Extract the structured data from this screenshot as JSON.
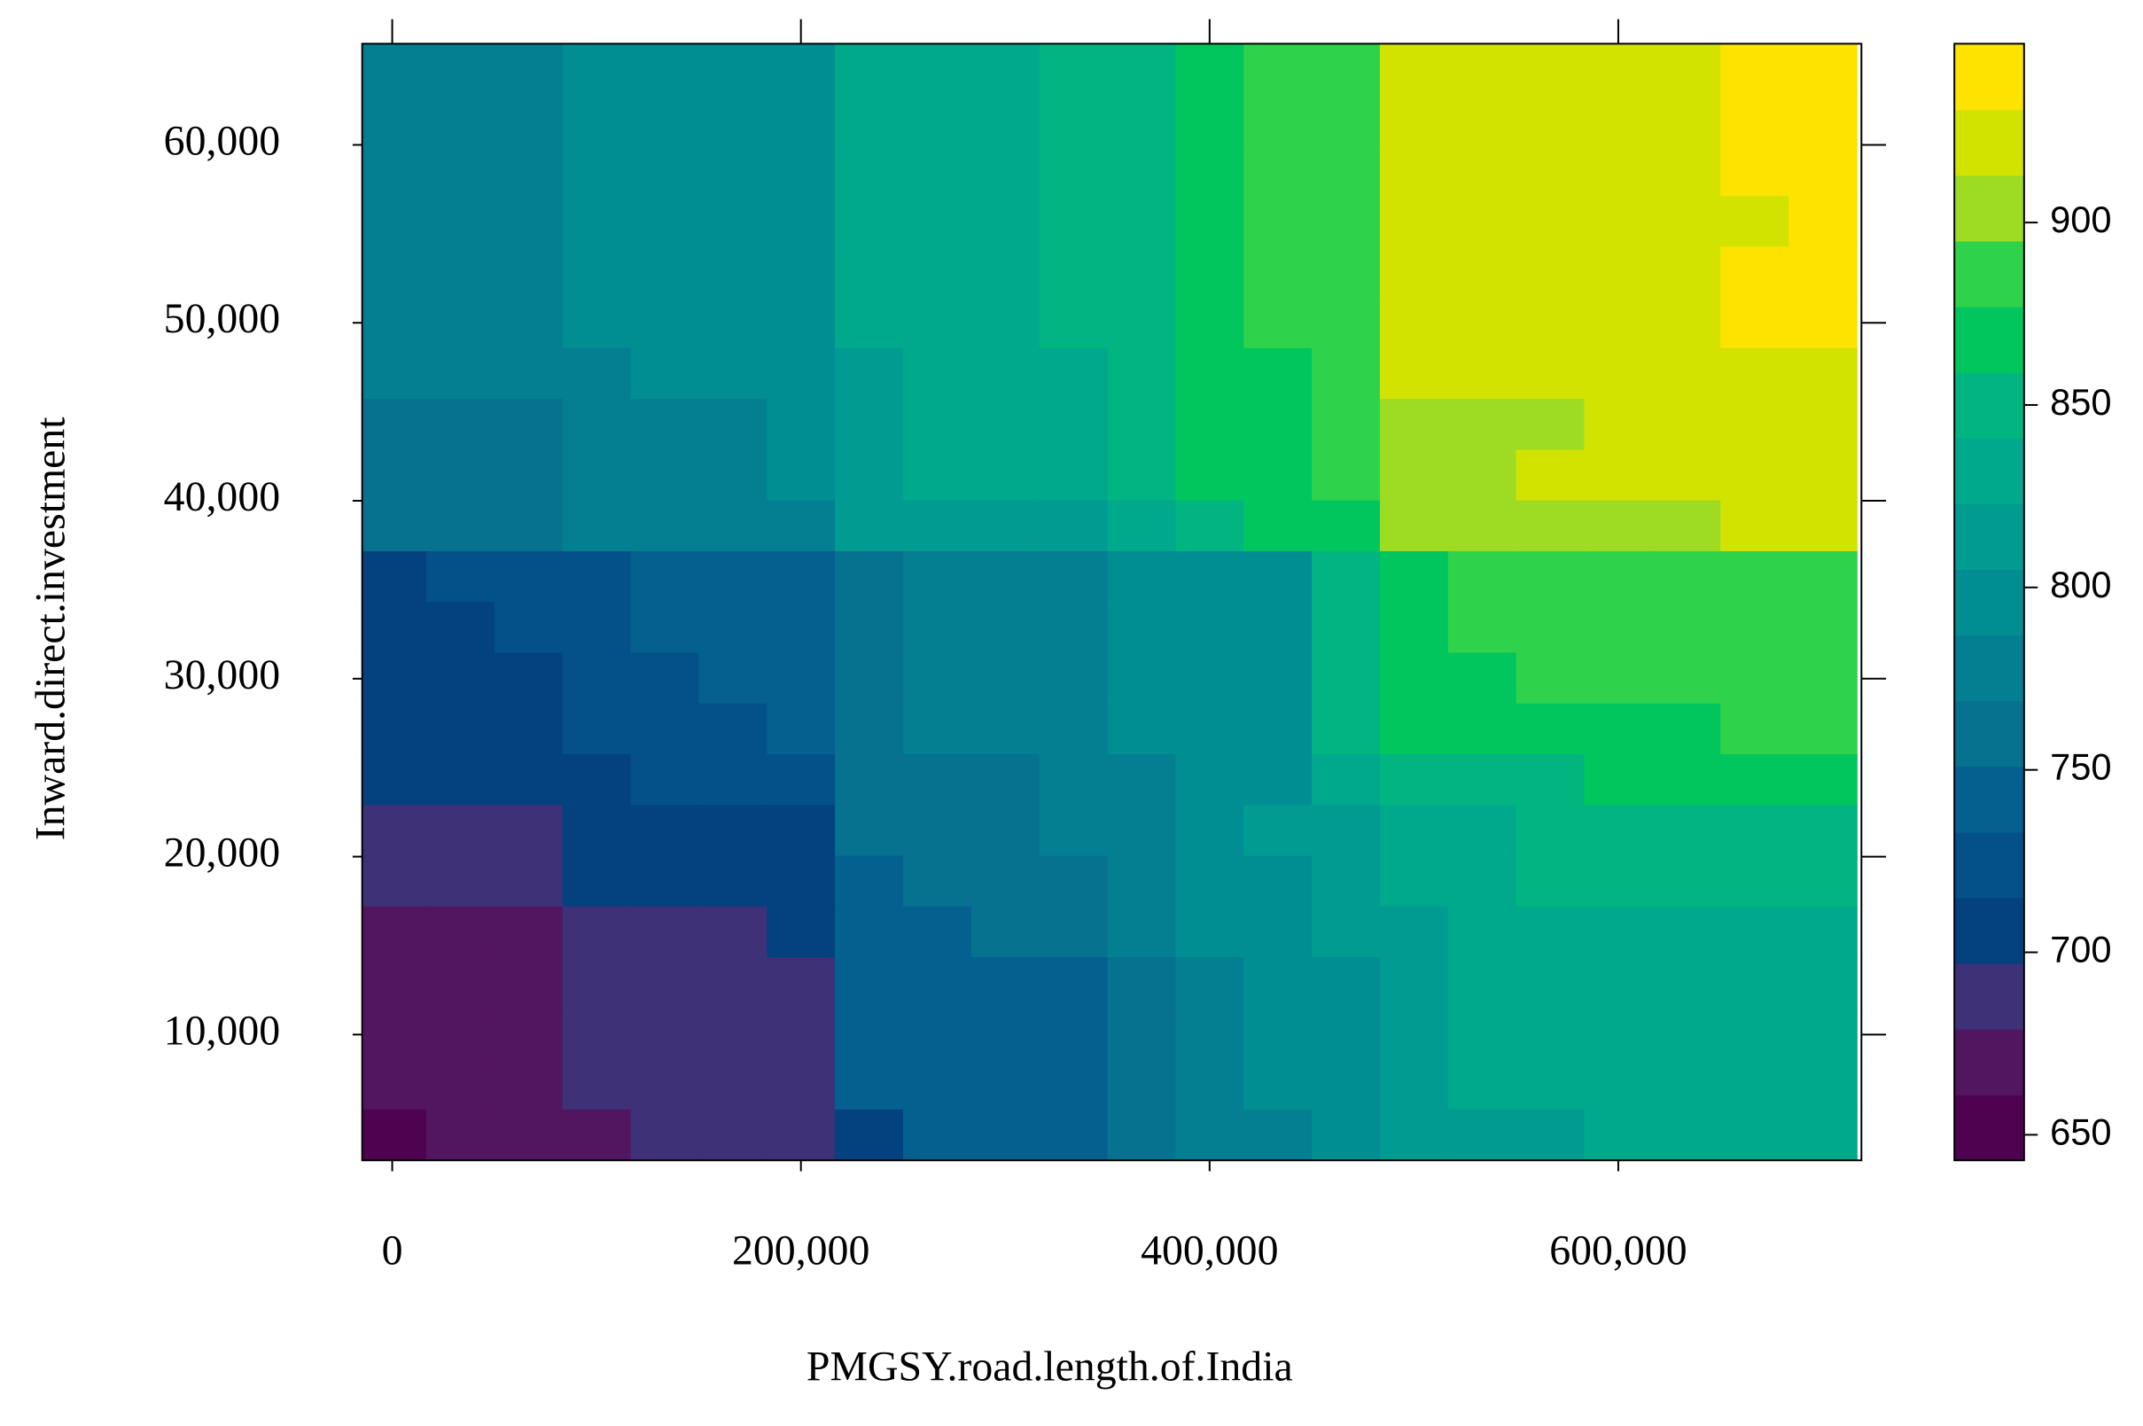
{
  "chart_data": {
    "type": "heatmap",
    "xlabel": "PMGSY.road.length.of.India",
    "ylabel": "Inward.direct.investment",
    "x": [
      0,
      33333,
      66667,
      100000,
      133333,
      166667,
      200000,
      233333,
      266667,
      300000,
      333333,
      366667,
      400000,
      433333,
      466667,
      500000,
      533333,
      566667,
      600000,
      633333,
      666667,
      700000
    ],
    "y": [
      64258,
      61406,
      58554,
      55702,
      52850,
      49998,
      47146,
      44294,
      41442,
      38590,
      35738,
      32886,
      30034,
      27182,
      24330,
      21478,
      18626,
      15774,
      12922,
      10070,
      7218,
      4366
    ],
    "z": [
      [
        778,
        778,
        778,
        796,
        796,
        796,
        796,
        832,
        832,
        832,
        850,
        850,
        868,
        886,
        886,
        922,
        922,
        922,
        922,
        922,
        940,
        940
      ],
      [
        778,
        778,
        778,
        796,
        796,
        796,
        796,
        832,
        832,
        832,
        850,
        850,
        868,
        886,
        886,
        922,
        922,
        922,
        922,
        922,
        940,
        940
      ],
      [
        778,
        778,
        778,
        796,
        796,
        796,
        796,
        832,
        832,
        832,
        850,
        850,
        868,
        886,
        886,
        922,
        922,
        922,
        922,
        922,
        940,
        940
      ],
      [
        778,
        778,
        778,
        796,
        796,
        796,
        796,
        832,
        832,
        832,
        850,
        850,
        868,
        886,
        886,
        922,
        922,
        922,
        922,
        922,
        922,
        940
      ],
      [
        778,
        778,
        778,
        796,
        796,
        796,
        796,
        832,
        832,
        832,
        850,
        850,
        868,
        886,
        886,
        922,
        922,
        922,
        922,
        922,
        940,
        940
      ],
      [
        778,
        778,
        778,
        796,
        796,
        796,
        796,
        832,
        832,
        832,
        850,
        850,
        868,
        886,
        886,
        922,
        922,
        922,
        922,
        922,
        940,
        940
      ],
      [
        778,
        778,
        778,
        778,
        796,
        796,
        796,
        814,
        832,
        832,
        832,
        850,
        868,
        868,
        886,
        922,
        922,
        922,
        922,
        922,
        922,
        922
      ],
      [
        760,
        760,
        760,
        778,
        778,
        778,
        796,
        814,
        832,
        832,
        832,
        850,
        868,
        868,
        886,
        904,
        904,
        904,
        922,
        922,
        922,
        922
      ],
      [
        760,
        760,
        760,
        778,
        778,
        778,
        796,
        814,
        832,
        832,
        832,
        850,
        868,
        868,
        886,
        904,
        904,
        922,
        922,
        922,
        922,
        922
      ],
      [
        760,
        760,
        760,
        778,
        778,
        778,
        778,
        814,
        814,
        814,
        814,
        832,
        850,
        868,
        868,
        904,
        904,
        904,
        904,
        904,
        922,
        922
      ],
      [
        706,
        724,
        724,
        724,
        742,
        742,
        742,
        760,
        778,
        778,
        778,
        796,
        796,
        796,
        850,
        868,
        886,
        886,
        886,
        886,
        886,
        886
      ],
      [
        706,
        706,
        724,
        724,
        742,
        742,
        742,
        760,
        778,
        778,
        778,
        796,
        796,
        796,
        850,
        868,
        886,
        886,
        886,
        886,
        886,
        886
      ],
      [
        706,
        706,
        706,
        724,
        724,
        742,
        742,
        760,
        778,
        778,
        778,
        796,
        796,
        796,
        850,
        868,
        868,
        886,
        886,
        886,
        886,
        886
      ],
      [
        706,
        706,
        706,
        724,
        724,
        724,
        742,
        760,
        778,
        778,
        778,
        796,
        796,
        796,
        850,
        868,
        868,
        868,
        868,
        868,
        886,
        886
      ],
      [
        706,
        706,
        706,
        706,
        724,
        724,
        724,
        760,
        760,
        760,
        778,
        778,
        796,
        796,
        832,
        850,
        850,
        850,
        868,
        868,
        868,
        868
      ],
      [
        688,
        688,
        688,
        706,
        706,
        706,
        706,
        760,
        760,
        760,
        778,
        778,
        796,
        814,
        814,
        832,
        832,
        850,
        850,
        850,
        850,
        850
      ],
      [
        688,
        688,
        688,
        706,
        706,
        706,
        706,
        742,
        760,
        760,
        760,
        778,
        796,
        796,
        814,
        832,
        832,
        850,
        850,
        850,
        850,
        850
      ],
      [
        670,
        670,
        670,
        688,
        688,
        688,
        706,
        742,
        742,
        760,
        760,
        778,
        796,
        796,
        814,
        814,
        832,
        832,
        832,
        832,
        832,
        832
      ],
      [
        670,
        670,
        670,
        688,
        688,
        688,
        688,
        742,
        742,
        742,
        742,
        760,
        778,
        796,
        796,
        814,
        832,
        832,
        832,
        832,
        832,
        832
      ],
      [
        670,
        670,
        670,
        688,
        688,
        688,
        688,
        742,
        742,
        742,
        742,
        760,
        778,
        796,
        796,
        814,
        832,
        832,
        832,
        832,
        832,
        832
      ],
      [
        670,
        670,
        670,
        688,
        688,
        688,
        688,
        742,
        742,
        742,
        742,
        760,
        778,
        796,
        796,
        814,
        832,
        832,
        832,
        832,
        832,
        832
      ],
      [
        652,
        670,
        670,
        670,
        688,
        688,
        688,
        706,
        742,
        742,
        742,
        760,
        778,
        778,
        796,
        814,
        814,
        814,
        832,
        832,
        832,
        832
      ]
    ],
    "xlim": [
      -14700,
      719000
    ],
    "ylim": [
      2934,
      65684
    ],
    "xticks": [
      0,
      {
        "value": 200000,
        "label": "200,000"
      },
      {
        "value": 400000,
        "label": "400,000"
      },
      {
        "value": 600000,
        "label": "600,000"
      }
    ],
    "yticks": [
      {
        "value": 10000,
        "label": "10,000"
      },
      {
        "value": 20000,
        "label": "20,000"
      },
      {
        "value": 30000,
        "label": "30,000"
      },
      {
        "value": 40000,
        "label": "40,000"
      },
      {
        "value": 50000,
        "label": "50,000"
      },
      {
        "value": 60000,
        "label": "60,000"
      }
    ],
    "colorkey": {
      "at": [
        643,
        661,
        679,
        697,
        715,
        733,
        751,
        769,
        787,
        805,
        823,
        841,
        859,
        877,
        895,
        913,
        931,
        949
      ],
      "colors": [
        "#4e0350",
        "#52155f",
        "#3e3177",
        "#03427f",
        "#045189",
        "#04618f",
        "#06728f",
        "#037f91",
        "#008e93",
        "#009b91",
        "#00a98b",
        "#00b580",
        "#00c65d",
        "#2ed34b",
        "#9edc23",
        "#d3e300",
        "#fde300"
      ],
      "ticks": [
        650,
        700,
        750,
        800,
        850,
        900
      ]
    }
  }
}
